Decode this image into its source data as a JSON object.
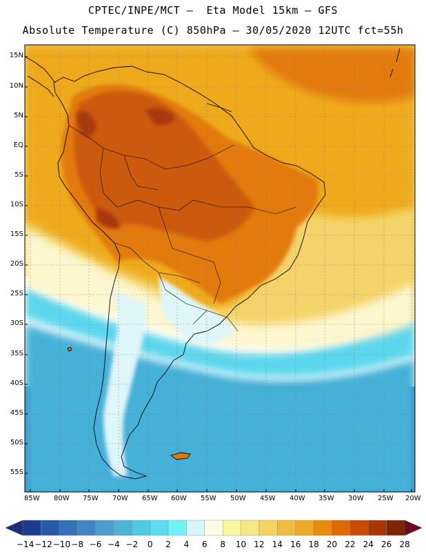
{
  "title_line1": "CPTEC/INPE/MCT –  Eta Model 15km – GFS",
  "title_line2": "Absolute Temperature (C) 850hPa – 30/05/2020 12UTC fct=55h",
  "lat_labels": [
    "15N",
    "10N",
    "5N",
    "EQ",
    "5S",
    "10S",
    "15S",
    "20S",
    "25S",
    "30S",
    "35S",
    "40S",
    "45S",
    "50S",
    "55S"
  ],
  "lon_labels": [
    "85W",
    "80W",
    "75W",
    "70W",
    "65W",
    "60W",
    "55W",
    "50W",
    "45W",
    "40W",
    "35W",
    "30W",
    "25W",
    "20W"
  ],
  "colorbar": {
    "labels": [
      "-14",
      "-12",
      "-10",
      "-8",
      "-6",
      "-4",
      "-2",
      "0",
      "2",
      "4",
      "6",
      "8",
      "10",
      "12",
      "14",
      "16",
      "18",
      "20",
      "22",
      "24",
      "26",
      "28"
    ],
    "colors": [
      "#1b3e8c",
      "#2a58a8",
      "#3471b6",
      "#3f87c2",
      "#4a9fcc",
      "#4db4d8",
      "#53c8e2",
      "#5cdcec",
      "#6ef4f8",
      "#d4f6fb",
      "#fdfbe6",
      "#fcf8a0",
      "#f8e883",
      "#f5d363",
      "#f1bd3f",
      "#edaa25",
      "#e88a0c",
      "#dc6a05",
      "#c74d07",
      "#a83708",
      "#7f230a"
    ],
    "low_color": "#1b2f7a",
    "high_color": "#6b0d1f"
  },
  "map_colors": {
    "ocean_south": "#3a7fc0",
    "cold": "#44b0d8",
    "cool": "#5bd6ec",
    "near_zero": "#dff6fb",
    "mild": "#fdf6cf",
    "warm": "#f4d46a",
    "hot": "#eeaa1e",
    "hotter": "#e27a0d",
    "very_hot": "#cc5a0b",
    "extreme": "#a7370a",
    "gridline": "#7a7a7a",
    "coast": "#000000"
  }
}
